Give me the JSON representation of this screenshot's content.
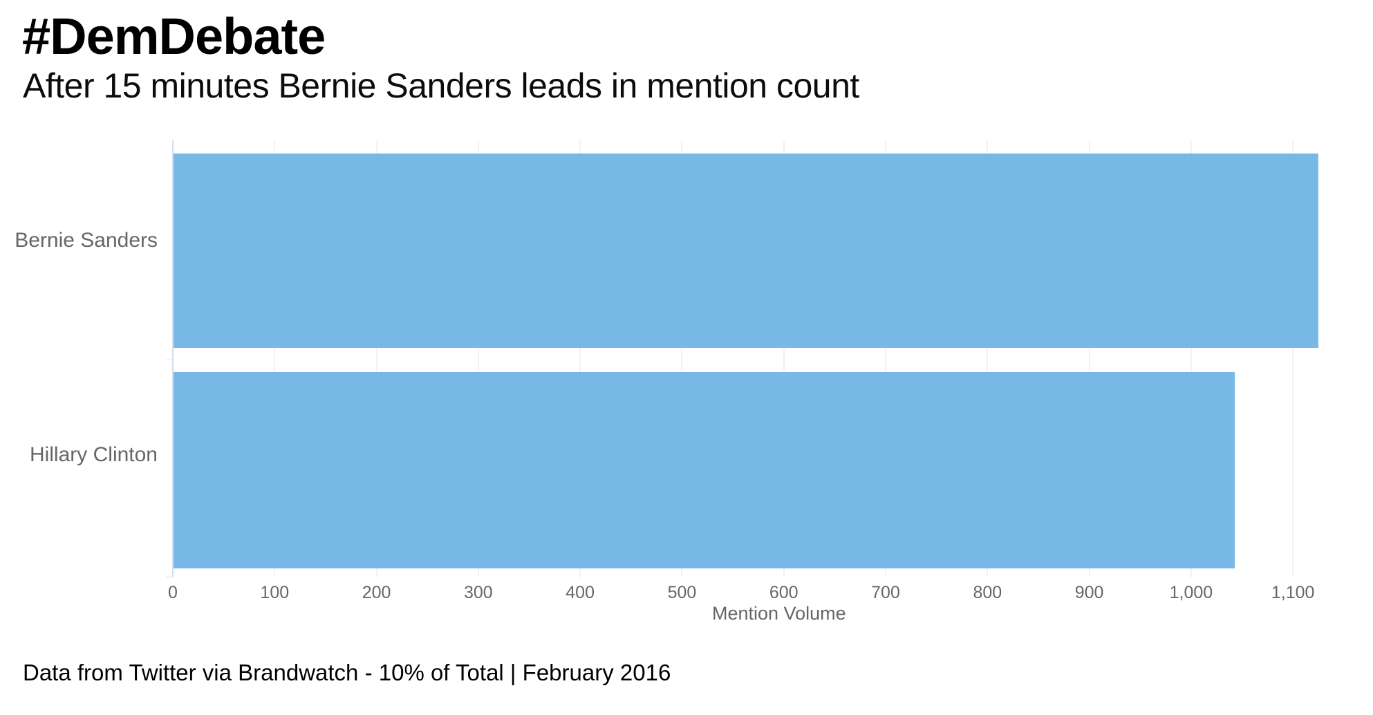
{
  "header": {
    "title": "#DemDebate",
    "subtitle": "After 15 minutes Bernie Sanders leads in mention count"
  },
  "footer": {
    "note": "Data from Twitter via Brandwatch - 10% of Total  | February 2016"
  },
  "colors": {
    "bar": "#78b8e6",
    "gridline": "#e6e6e6",
    "category_axis_line": "#d5deed",
    "label_gray": "#666666",
    "text_black": "#000000"
  },
  "chart_data": {
    "type": "bar",
    "orientation": "horizontal",
    "title": "#DemDebate",
    "subtitle": "After 15 minutes Bernie Sanders leads in mention count",
    "categories": [
      "Bernie Sanders",
      "Hillary Clinton"
    ],
    "series": [
      {
        "name": "Mention Volume",
        "values": [
          1125,
          1043
        ]
      }
    ],
    "xlabel": "Mention Volume",
    "ylabel": "",
    "xlim": [
      0,
      1125
    ],
    "xticks": [
      0,
      100,
      200,
      300,
      400,
      500,
      600,
      700,
      800,
      900,
      1000,
      1100
    ],
    "xtick_labels": [
      "0",
      "100",
      "200",
      "300",
      "400",
      "500",
      "600",
      "700",
      "800",
      "900",
      "1,000",
      "1,100"
    ],
    "grid": true,
    "legend": false,
    "caption": "Data from Twitter via Brandwatch - 10% of Total  | February 2016"
  }
}
